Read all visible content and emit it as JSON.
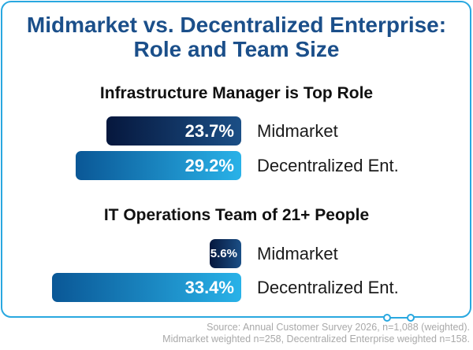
{
  "title_lines": [
    "Midmarket vs. Decentralized Enterprise:",
    "Role and Team Size"
  ],
  "colors": {
    "title": "#1b4f8a",
    "frame": "#29a8e0",
    "midmarket_bar": "#0b1f4d",
    "decentralized_bar": "#1581c7",
    "source_text": "#a9a9a9"
  },
  "chart_data": [
    {
      "type": "bar",
      "orientation": "horizontal",
      "title": "Infrastructure Manager is Top Role",
      "categories": [
        "Midmarket",
        "Decentralized Ent."
      ],
      "values": [
        23.7,
        29.2
      ],
      "value_labels": [
        "23.7%",
        "29.2%"
      ],
      "unit": "%"
    },
    {
      "type": "bar",
      "orientation": "horizontal",
      "title": "IT Operations Team of 21+ People",
      "categories": [
        "Midmarket",
        "Decentralized Ent."
      ],
      "values": [
        5.6,
        33.4
      ],
      "value_labels": [
        "5.6%",
        "33.4%"
      ],
      "unit": "%"
    }
  ],
  "source_lines": [
    "Source: Annual Customer Survey 2026, n=1,088 (weighted).",
    "Midmarket weighted n=258, Decentralized Enterprise weighted n=158."
  ]
}
